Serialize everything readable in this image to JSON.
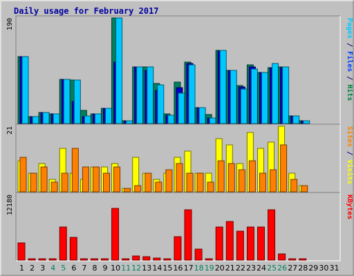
{
  "chart_data": {
    "type": "bar",
    "title": "Daily usage for February 2017",
    "x": [
      "1",
      "2",
      "3",
      "4",
      "5",
      "6",
      "7",
      "8",
      "9",
      "10",
      "11",
      "12",
      "13",
      "14",
      "15",
      "16",
      "17",
      "18",
      "19",
      "20",
      "21",
      "22",
      "23",
      "24",
      "25",
      "26",
      "27",
      "28",
      "29",
      "30",
      "31"
    ],
    "weekend_days": [
      "4",
      "5",
      "11",
      "12",
      "18",
      "19",
      "25",
      "26"
    ],
    "panels": [
      {
        "id": "top",
        "max_label": "190",
        "ymax": 190,
        "right_label": [
          {
            "text": "Pages",
            "color": "#00c8ff"
          },
          {
            "text": " / ",
            "color": "#000080"
          },
          {
            "text": "Files",
            "color": "#0040ff"
          },
          {
            "text": " / ",
            "color": "#000080"
          },
          {
            "text": "Hits",
            "color": "#008040"
          }
        ],
        "series": [
          {
            "name": "Hits",
            "color": "#008060",
            "values": [
              120,
              12,
              20,
              17,
              80,
              78,
              24,
              17,
              27,
              190,
              5,
              102,
              102,
              72,
              18,
              75,
              110,
              28,
              16,
              132,
              95,
              68,
              105,
              92,
              100,
              102,
              14,
              5,
              0,
              0,
              0
            ]
          },
          {
            "name": "Files",
            "color": "#0000c0",
            "values": [
              120,
              12,
              20,
              17,
              80,
              40,
              12,
              17,
              27,
              110,
              5,
              102,
              96,
              60,
              15,
              65,
              108,
              28,
              10,
              130,
              95,
              66,
              102,
              92,
              100,
              100,
              14,
              5,
              0,
              0,
              0
            ]
          },
          {
            "name": "Pages",
            "color": "#00c8ff",
            "values": [
              120,
              12,
              20,
              17,
              80,
              78,
              14,
              17,
              27,
              190,
              5,
              102,
              102,
              70,
              15,
              55,
              105,
              28,
              10,
              132,
              95,
              62,
              98,
              92,
              108,
              102,
              14,
              5,
              0,
              0,
              0
            ]
          }
        ]
      },
      {
        "id": "mid",
        "max_label": "21",
        "ymax": 21,
        "right_label": [
          {
            "text": "Sites",
            "color": "#ff8000"
          },
          {
            "text": " / ",
            "color": "#000080"
          },
          {
            "text": "Visits",
            "color": "#ffff00"
          }
        ],
        "series": [
          {
            "name": "Visits",
            "color": "#ffff00",
            "values": [
              10,
              6,
              9,
              4,
              14,
              6,
              4,
              8,
              8,
              9,
              1,
              11,
              6,
              4,
              6,
              11,
              13,
              6,
              6,
              17,
              15,
              9,
              19,
              14,
              16,
              21,
              6,
              2,
              0,
              0,
              0
            ]
          },
          {
            "name": "Sites",
            "color": "#ff8000",
            "values": [
              11,
              6,
              8,
              3,
              6,
              14,
              8,
              8,
              6,
              8,
              1,
              2,
              6,
              3,
              7,
              9,
              6,
              6,
              3,
              10,
              9,
              7,
              10,
              6,
              7,
              15,
              4,
              2,
              0,
              0,
              0
            ]
          }
        ]
      },
      {
        "id": "bot",
        "max_label": "12180",
        "ymax": 12180,
        "right_label": [
          {
            "text": "KBytes",
            "color": "#ff0000"
          }
        ],
        "series": [
          {
            "name": "KBytes",
            "color": "#ff0000",
            "values": [
              3200,
              100,
              100,
              100,
              6200,
              4200,
              100,
              100,
              100,
              9600,
              100,
              800,
              600,
              400,
              100,
              4300,
              9400,
              2000,
              100,
              6200,
              7200,
              5400,
              6200,
              6200,
              9400,
              1200,
              100,
              100,
              0,
              0,
              0
            ]
          }
        ]
      }
    ]
  }
}
